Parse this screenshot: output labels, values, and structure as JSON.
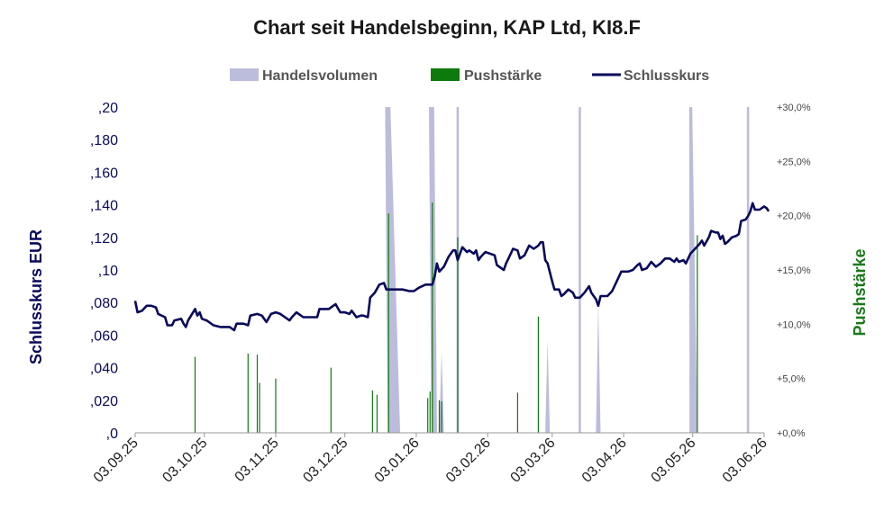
{
  "chart_data": {
    "type": "line",
    "title": "Chart seit Handelsbeginn, KAP Ltd, KI8.F",
    "legend": {
      "placement": "top-center",
      "entries": [
        {
          "label": "Handelsvolumen",
          "color": "#bcbcdc",
          "kind": "area"
        },
        {
          "label": "Pushstärke",
          "color": "#0e7a0e",
          "kind": "bar"
        },
        {
          "label": "Schlusskurs",
          "color": "#0a0a5c",
          "kind": "line"
        }
      ]
    },
    "ylabel_left": "Schlusskurs EUR",
    "ylabel_right": "Pushstärke",
    "y_left": {
      "min": 0,
      "max": 0.2,
      "ticks": [
        ",0",
        ",020",
        ",040",
        ",060",
        ",080",
        ",10",
        ",120",
        ",140",
        ",160",
        ",180",
        ",20"
      ]
    },
    "y_right": {
      "min": 0,
      "max": 30,
      "ticks": [
        "+0,0%",
        "+5,0%",
        "+10,0%",
        "+15,0%",
        "+20,0%",
        "+25,0%",
        "+30,0%"
      ]
    },
    "x_axis": {
      "start": "2025-09-03",
      "end": "2026-06-03",
      "tick_dates": [
        "2025-09-03",
        "2025-10-03",
        "2025-11-03",
        "2025-12-03",
        "2026-01-03",
        "2026-02-03",
        "2026-03-03",
        "2026-04-03",
        "2026-05-03",
        "2026-06-03"
      ],
      "tick_labels": [
        "03.09.25",
        "03.10.25",
        "03.11.25",
        "03.12.25",
        "03.01.26",
        "03.02.26",
        "03.03.26",
        "03.04.26",
        "03.05.26",
        "03.06.26"
      ]
    },
    "grid": false,
    "series": [
      {
        "name": "Schlusskurs",
        "color": "#0a0a5c",
        "axis": "left",
        "points": [
          [
            "2025-09-03",
            0.081
          ],
          [
            "2025-09-04",
            0.074
          ],
          [
            "2025-09-06",
            0.075
          ],
          [
            "2025-09-08",
            0.078
          ],
          [
            "2025-09-10",
            0.078
          ],
          [
            "2025-09-12",
            0.077
          ],
          [
            "2025-09-13",
            0.073
          ],
          [
            "2025-09-16",
            0.071
          ],
          [
            "2025-09-17",
            0.066
          ],
          [
            "2025-09-19",
            0.066
          ],
          [
            "2025-09-20",
            0.069
          ],
          [
            "2025-09-23",
            0.07
          ],
          [
            "2025-09-24",
            0.067
          ],
          [
            "2025-09-25",
            0.065
          ],
          [
            "2025-09-26",
            0.069
          ],
          [
            "2025-09-29",
            0.076
          ],
          [
            "2025-09-30",
            0.072
          ],
          [
            "2025-10-01",
            0.074
          ],
          [
            "2025-10-02",
            0.07
          ],
          [
            "2025-10-04",
            0.069
          ],
          [
            "2025-10-07",
            0.066
          ],
          [
            "2025-10-10",
            0.065
          ],
          [
            "2025-10-14",
            0.065
          ],
          [
            "2025-10-16",
            0.063
          ],
          [
            "2025-10-17",
            0.067
          ],
          [
            "2025-10-20",
            0.067
          ],
          [
            "2025-10-22",
            0.066
          ],
          [
            "2025-10-23",
            0.072
          ],
          [
            "2025-10-26",
            0.073
          ],
          [
            "2025-10-28",
            0.072
          ],
          [
            "2025-10-30",
            0.068
          ],
          [
            "2025-11-01",
            0.073
          ],
          [
            "2025-11-03",
            0.074
          ],
          [
            "2025-11-05",
            0.073
          ],
          [
            "2025-11-07",
            0.071
          ],
          [
            "2025-11-09",
            0.069
          ],
          [
            "2025-11-10",
            0.071
          ],
          [
            "2025-11-12",
            0.074
          ],
          [
            "2025-11-13",
            0.073
          ],
          [
            "2025-11-15",
            0.071
          ],
          [
            "2025-11-17",
            0.071
          ],
          [
            "2025-11-19",
            0.071
          ],
          [
            "2025-11-21",
            0.071
          ],
          [
            "2025-11-22",
            0.076
          ],
          [
            "2025-11-24",
            0.076
          ],
          [
            "2025-11-26",
            0.076
          ],
          [
            "2025-11-28",
            0.078
          ],
          [
            "2025-11-29",
            0.079
          ],
          [
            "2025-12-01",
            0.074
          ],
          [
            "2025-12-03",
            0.074
          ],
          [
            "2025-12-05",
            0.073
          ],
          [
            "2025-12-06",
            0.075
          ],
          [
            "2025-12-08",
            0.071
          ],
          [
            "2025-12-10",
            0.072
          ],
          [
            "2025-12-11",
            0.072
          ],
          [
            "2025-12-13",
            0.071
          ],
          [
            "2025-12-14",
            0.083
          ],
          [
            "2025-12-16",
            0.086
          ],
          [
            "2025-12-18",
            0.091
          ],
          [
            "2025-12-20",
            0.092
          ],
          [
            "2025-12-21",
            0.088
          ],
          [
            "2025-12-24",
            0.088
          ],
          [
            "2025-12-28",
            0.088
          ],
          [
            "2025-12-31",
            0.087
          ],
          [
            "2026-01-02",
            0.087
          ],
          [
            "2026-01-04",
            0.089
          ],
          [
            "2026-01-07",
            0.091
          ],
          [
            "2026-01-09",
            0.091
          ],
          [
            "2026-01-10",
            0.091
          ],
          [
            "2026-01-11",
            0.096
          ],
          [
            "2026-01-12",
            0.104
          ],
          [
            "2026-01-13",
            0.099
          ],
          [
            "2026-01-15",
            0.102
          ],
          [
            "2026-01-17",
            0.108
          ],
          [
            "2026-01-19",
            0.112
          ],
          [
            "2026-01-20",
            0.112
          ],
          [
            "2026-01-21",
            0.106
          ],
          [
            "2026-01-22",
            0.11
          ],
          [
            "2026-01-23",
            0.114
          ],
          [
            "2026-01-25",
            0.111
          ],
          [
            "2026-01-26",
            0.112
          ],
          [
            "2026-01-28",
            0.11
          ],
          [
            "2026-01-29",
            0.112
          ],
          [
            "2026-01-30",
            0.106
          ],
          [
            "2026-01-31",
            0.108
          ],
          [
            "2026-02-02",
            0.111
          ],
          [
            "2026-02-04",
            0.11
          ],
          [
            "2026-02-06",
            0.109
          ],
          [
            "2026-02-07",
            0.103
          ],
          [
            "2026-02-10",
            0.1
          ],
          [
            "2026-02-11",
            0.104
          ],
          [
            "2026-02-13",
            0.11
          ],
          [
            "2026-02-14",
            0.113
          ],
          [
            "2026-02-16",
            0.112
          ],
          [
            "2026-02-17",
            0.107
          ],
          [
            "2026-02-19",
            0.109
          ],
          [
            "2026-02-21",
            0.115
          ],
          [
            "2026-02-23",
            0.113
          ],
          [
            "2026-02-25",
            0.115
          ],
          [
            "2026-02-26",
            0.117
          ],
          [
            "2026-02-27",
            0.117
          ],
          [
            "2026-02-28",
            0.106
          ],
          [
            "2026-03-01",
            0.104
          ],
          [
            "2026-03-03",
            0.093
          ],
          [
            "2026-03-04",
            0.088
          ],
          [
            "2026-03-06",
            0.088
          ],
          [
            "2026-03-07",
            0.084
          ],
          [
            "2026-03-08",
            0.085
          ],
          [
            "2026-03-10",
            0.088
          ],
          [
            "2026-03-12",
            0.086
          ],
          [
            "2026-03-13",
            0.083
          ],
          [
            "2026-03-15",
            0.083
          ],
          [
            "2026-03-17",
            0.086
          ],
          [
            "2026-03-19",
            0.09
          ],
          [
            "2026-03-20",
            0.086
          ],
          [
            "2026-03-22",
            0.082
          ],
          [
            "2026-03-23",
            0.078
          ],
          [
            "2026-03-24",
            0.084
          ],
          [
            "2026-03-27",
            0.084
          ],
          [
            "2026-03-29",
            0.087
          ],
          [
            "2026-03-31",
            0.093
          ],
          [
            "2026-04-02",
            0.099
          ],
          [
            "2026-04-05",
            0.099
          ],
          [
            "2026-04-07",
            0.1
          ],
          [
            "2026-04-09",
            0.103
          ],
          [
            "2026-04-10",
            0.104
          ],
          [
            "2026-04-11",
            0.1
          ],
          [
            "2026-04-13",
            0.101
          ],
          [
            "2026-04-15",
            0.105
          ],
          [
            "2026-04-17",
            0.102
          ],
          [
            "2026-04-19",
            0.104
          ],
          [
            "2026-04-21",
            0.107
          ],
          [
            "2026-04-23",
            0.107
          ],
          [
            "2026-04-25",
            0.105
          ],
          [
            "2026-04-26",
            0.107
          ],
          [
            "2026-04-27",
            0.105
          ],
          [
            "2026-04-29",
            0.106
          ],
          [
            "2026-04-30",
            0.104
          ],
          [
            "2026-05-02",
            0.11
          ],
          [
            "2026-05-04",
            0.113
          ],
          [
            "2026-05-06",
            0.116
          ],
          [
            "2026-05-07",
            0.118
          ],
          [
            "2026-05-08",
            0.115
          ],
          [
            "2026-05-10",
            0.12
          ],
          [
            "2026-05-11",
            0.124
          ],
          [
            "2026-05-13",
            0.123
          ],
          [
            "2026-05-14",
            0.123
          ],
          [
            "2026-05-15",
            0.119
          ],
          [
            "2026-05-16",
            0.121
          ],
          [
            "2026-05-17",
            0.116
          ],
          [
            "2026-05-18",
            0.117
          ],
          [
            "2026-05-20",
            0.12
          ],
          [
            "2026-05-22",
            0.121
          ],
          [
            "2026-05-23",
            0.122
          ],
          [
            "2026-05-24",
            0.13
          ],
          [
            "2026-05-26",
            0.131
          ],
          [
            "2026-05-27",
            0.133
          ],
          [
            "2026-05-28",
            0.136
          ],
          [
            "2026-05-29",
            0.141
          ],
          [
            "2026-05-30",
            0.137
          ],
          [
            "2026-06-01",
            0.137
          ],
          [
            "2026-06-03",
            0.139
          ],
          [
            "2026-06-04",
            0.138
          ],
          [
            "2026-06-05",
            0.136
          ]
        ]
      },
      {
        "name": "Pushstärke",
        "color": "#0e7a0e",
        "axis": "right",
        "bars": [
          [
            "2025-09-29",
            7.0
          ],
          [
            "2025-10-22",
            7.3
          ],
          [
            "2025-10-26",
            7.2
          ],
          [
            "2025-10-27",
            4.6
          ],
          [
            "2025-11-03",
            5.0
          ],
          [
            "2025-11-27",
            6.0
          ],
          [
            "2025-12-15",
            3.9
          ],
          [
            "2025-12-17",
            3.5
          ],
          [
            "2025-12-22",
            20.2
          ],
          [
            "2026-01-08",
            3.2
          ],
          [
            "2026-01-09",
            3.8
          ],
          [
            "2026-01-10",
            21.2
          ],
          [
            "2026-01-13",
            3.0
          ],
          [
            "2026-01-14",
            2.9
          ],
          [
            "2026-01-21",
            18.0
          ],
          [
            "2026-02-16",
            3.7
          ],
          [
            "2026-02-25",
            10.7
          ],
          [
            "2026-05-05",
            18.2
          ]
        ]
      },
      {
        "name": "Handelsvolumen",
        "color": "#bcbcdc",
        "axis": "right",
        "spikes": [
          [
            "2025-12-22",
            30,
            1.5,
            5
          ],
          [
            "2026-01-10",
            30,
            1.5,
            2
          ],
          [
            "2026-01-14",
            7.5,
            1,
            1
          ],
          [
            "2026-01-21",
            30,
            0.5,
            0.5
          ],
          [
            "2026-03-01",
            8.5,
            1,
            1
          ],
          [
            "2026-03-15",
            30,
            0.5,
            0.5
          ],
          [
            "2026-03-23",
            12,
            1,
            1
          ],
          [
            "2026-05-02",
            30,
            0.5,
            3
          ],
          [
            "2026-05-27",
            30,
            0.5,
            0.5
          ]
        ]
      }
    ]
  }
}
